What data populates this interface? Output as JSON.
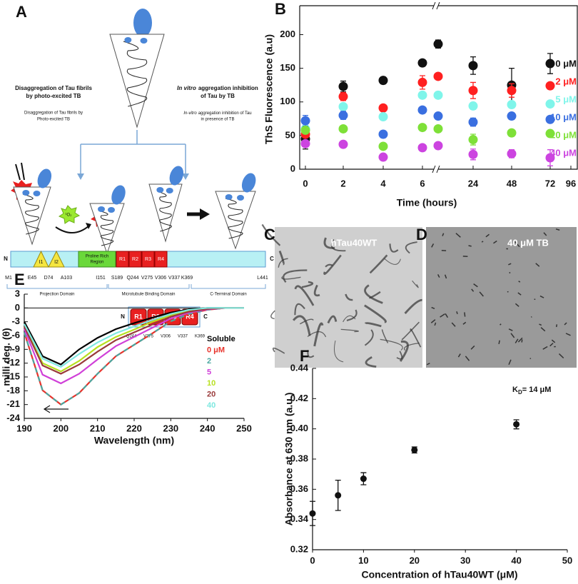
{
  "diagram": {
    "panel_label": "A",
    "left_heading": [
      "Disaggregation of Tau fibrils",
      "by photo-excited TB"
    ],
    "left_caption": [
      "Disaggregation of Tau fibrils  by",
      "Photo-excited TB"
    ],
    "right_heading_italic": "In vitro",
    "right_heading": [
      "aggregation inhibition",
      "of Tau by TB"
    ],
    "right_caption_italic": "In-vitro",
    "right_caption": [
      "aggregation inhibition of Tau",
      "in presence of TB"
    ],
    "singlet_oxygen": "¹O₂",
    "domain_bar": {
      "n": "N",
      "c": "C",
      "inserts": [
        "I1",
        "I2"
      ],
      "proline": [
        "Proline Rich",
        "Region"
      ],
      "repeats": [
        "R1",
        "R2",
        "R3",
        "R4"
      ],
      "residues": [
        "M1",
        "E45",
        "D74",
        "A103",
        "I151",
        "S189",
        "Q244",
        "V275",
        "V306",
        "V337",
        "K369",
        "L441"
      ],
      "domains": [
        "Projection Domain",
        "Microtubule Binding Domain",
        "C-Terminal Domain"
      ]
    },
    "repeat_bar": {
      "n": "N",
      "c": "C",
      "repeats": [
        "R1",
        "R2",
        "R3",
        "R4"
      ],
      "residues": [
        "Q244",
        "V275",
        "V306",
        "V337",
        "K369"
      ]
    }
  },
  "micrographs": [
    {
      "panel_label": "C",
      "label": "hTau40WT"
    },
    {
      "panel_label": "D",
      "label": "40 μM TB"
    }
  ],
  "chart_data": [
    {
      "type": "scatter",
      "panel_label": "B",
      "x_label": "Time (hours)",
      "y_label": "ThS Fluorescence (a.u)",
      "categories": [
        "0",
        "2",
        "4",
        "6",
        null,
        "24",
        "48",
        "72",
        "96"
      ],
      "ylim": [
        0,
        243
      ],
      "yticks": [
        0,
        50,
        100,
        150,
        200
      ],
      "axis_break": true,
      "series": [
        {
          "name": "0 μM",
          "color": "#111111",
          "values": [
            45,
            123,
            132,
            158,
            186,
            154,
            125,
            157,
            null
          ],
          "errors": [
            15,
            8,
            5,
            4,
            6,
            13,
            25,
            15,
            null
          ]
        },
        {
          "name": "2 μM",
          "color": "#ff2020",
          "values": [
            52,
            108,
            91,
            129,
            138,
            117,
            117,
            124,
            null
          ],
          "errors": [
            5,
            6,
            3,
            10,
            4,
            12,
            10,
            4,
            null
          ]
        },
        {
          "name": "5 μM",
          "color": "#7ff5ea",
          "values": [
            60,
            93,
            78,
            110,
            110,
            94,
            96,
            97,
            null
          ],
          "errors": [
            4,
            4,
            4,
            4,
            4,
            5,
            5,
            4,
            null
          ]
        },
        {
          "name": "10 μM",
          "color": "#3a6fe0",
          "values": [
            72,
            80,
            52,
            88,
            79,
            70,
            79,
            74,
            null
          ],
          "errors": [
            8,
            6,
            5,
            4,
            4,
            6,
            5,
            4,
            null
          ]
        },
        {
          "name": "20 μM",
          "color": "#7ee038",
          "values": [
            58,
            60,
            34,
            62,
            60,
            44,
            54,
            53,
            null
          ],
          "errors": [
            4,
            4,
            4,
            4,
            4,
            8,
            4,
            4,
            null
          ]
        },
        {
          "name": "40 μM",
          "color": "#cc44e0",
          "values": [
            38,
            37,
            18,
            32,
            35,
            22,
            23,
            17,
            null
          ],
          "errors": [
            4,
            3,
            3,
            3,
            3,
            8,
            6,
            12,
            null
          ]
        }
      ]
    },
    {
      "type": "line",
      "panel_label": "E",
      "x_label": "Wavelength (nm)",
      "y_label": "milli deg. (θ)",
      "x": [
        190,
        195,
        200,
        205,
        210,
        215,
        220,
        225,
        230,
        235,
        240,
        245,
        250
      ],
      "xlim": [
        190,
        250
      ],
      "xticks": [
        190,
        200,
        210,
        220,
        230,
        240,
        250
      ],
      "ylim": [
        -24,
        3
      ],
      "yticks": [
        3,
        0,
        -3,
        -6,
        -9,
        -12,
        -15,
        -18,
        -21,
        -24
      ],
      "zero_line": true,
      "series": [
        {
          "name": "Soluble",
          "color": "#000000",
          "values": [
            -3,
            -10.5,
            -12.3,
            -9,
            -6.5,
            -4.6,
            -3.3,
            -2.1,
            -1,
            -0.3,
            0,
            0,
            0
          ]
        },
        {
          "name": "0 μM",
          "color": "#e8322a",
          "values": [
            -5.3,
            -17.9,
            -21,
            -18.5,
            -14.3,
            -10.5,
            -8,
            -5.5,
            -2.9,
            -1.3,
            -0.4,
            0,
            0
          ]
        },
        {
          "name": "2",
          "color": "#4aa8a0",
          "dashed": true,
          "values": [
            -5.3,
            -17.9,
            -21,
            -18.5,
            -14.3,
            -10.5,
            -8,
            -5.5,
            -2.9,
            -1.3,
            -0.4,
            0,
            0
          ]
        },
        {
          "name": "5",
          "color": "#d040d8",
          "values": [
            -4.5,
            -14.5,
            -16.4,
            -14.3,
            -11.2,
            -8.3,
            -6.3,
            -4.3,
            -2.3,
            -1,
            -0.3,
            0,
            0
          ]
        },
        {
          "name": "10",
          "color": "#b8e020",
          "values": [
            -4,
            -12,
            -13.8,
            -11.5,
            -8.5,
            -6.3,
            -4.7,
            -3,
            -1.6,
            -0.6,
            -0.1,
            0,
            0
          ]
        },
        {
          "name": "20",
          "color": "#9a3a3a",
          "values": [
            -4,
            -12.5,
            -14.3,
            -12.3,
            -9.5,
            -7,
            -5.3,
            -3.6,
            -1.9,
            -0.8,
            -0.2,
            0,
            0
          ]
        },
        {
          "name": "40",
          "color": "#7fe8e0",
          "values": [
            -3.5,
            -11,
            -12.8,
            -10,
            -7.5,
            -5.5,
            -4,
            -2.6,
            -1.3,
            -0.4,
            0,
            0,
            0
          ]
        }
      ]
    },
    {
      "type": "scatter",
      "panel_label": "F",
      "x_label": "Concentration of hTau40WT (μM)",
      "y_label": "Absorbance at 630 nm (a.u.)",
      "annotation_main": "K",
      "annotation_sub": "D",
      "annotation_tail": "= 14 μM",
      "x": [
        0,
        5,
        10,
        20,
        40
      ],
      "xlim": [
        0,
        50
      ],
      "xticks": [
        0,
        10,
        20,
        30,
        40,
        50
      ],
      "ylim": [
        0.32,
        0.44
      ],
      "yticks": [
        0.32,
        0.34,
        0.36,
        0.38,
        {
          "value": 0.4,
          "label": "0.40"
        },
        0.42,
        0.44
      ],
      "series": [
        {
          "color": "#111111",
          "values": [
            0.344,
            0.356,
            0.367,
            0.386,
            0.403
          ],
          "errors": [
            0.008,
            0.01,
            0.004,
            0.002,
            0.003
          ]
        }
      ]
    }
  ]
}
